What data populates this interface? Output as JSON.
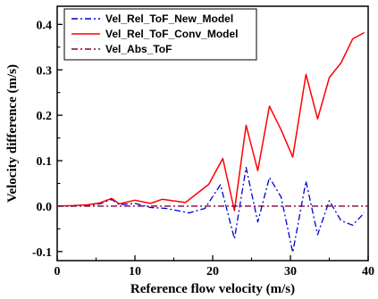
{
  "chart_data": {
    "type": "line",
    "title": "",
    "xlabel": "Reference flow velocity (m/s)",
    "ylabel": "Velocity difference (m/s)",
    "xlim": [
      0,
      40
    ],
    "ylim": [
      -0.12,
      0.44
    ],
    "xticks": [
      0,
      10,
      20,
      30,
      40
    ],
    "yticks": [
      -0.1,
      0.0,
      0.1,
      0.2,
      0.3,
      0.4
    ],
    "xtick_labels": [
      "0",
      "10",
      "20",
      "30",
      "40"
    ],
    "ytick_labels": [
      "-0.1",
      "0.0",
      "0.1",
      "0.2",
      "0.3",
      "0.4"
    ],
    "grid": false,
    "legend_position": "top-left",
    "series": [
      {
        "name": "Vel_Rel_ToF_New_Model",
        "color": "#0000cc",
        "dash": "dash-dot",
        "x": [
          0,
          2,
          4,
          5.5,
          7,
          8,
          10,
          12,
          14,
          17,
          19,
          21,
          22.8,
          24.3,
          25.8,
          27.3,
          28.8,
          30.3,
          32,
          33.5,
          35,
          36.5,
          38,
          39.5
        ],
        "y": [
          0.0,
          0.0,
          0.002,
          0.005,
          0.015,
          0.003,
          0.006,
          -0.003,
          -0.005,
          -0.015,
          -0.005,
          0.047,
          -0.072,
          0.085,
          -0.035,
          0.063,
          0.02,
          -0.102,
          0.055,
          -0.063,
          0.012,
          -0.032,
          -0.042,
          -0.015
        ]
      },
      {
        "name": "Vel_Rel_ToF_Conv_Model",
        "color": "#ff0000",
        "dash": "solid",
        "x": [
          0,
          2,
          4,
          5.5,
          7,
          8,
          10,
          12,
          13.5,
          16.5,
          19.5,
          21.3,
          22.8,
          24.3,
          25.8,
          27.3,
          28.8,
          30.3,
          32,
          33.5,
          35,
          36.5,
          38,
          39.5
        ],
        "y": [
          0.0,
          0.001,
          0.003,
          0.007,
          0.017,
          0.005,
          0.013,
          0.006,
          0.015,
          0.008,
          0.048,
          0.105,
          -0.01,
          0.178,
          0.078,
          0.22,
          0.168,
          0.108,
          0.29,
          0.192,
          0.283,
          0.315,
          0.368,
          0.382
        ]
      },
      {
        "name": "Vel_Abs_ToF",
        "color": "#800040",
        "dash": "dash-dot",
        "x": [
          0,
          40
        ],
        "y": [
          0.0,
          0.0
        ]
      }
    ]
  }
}
